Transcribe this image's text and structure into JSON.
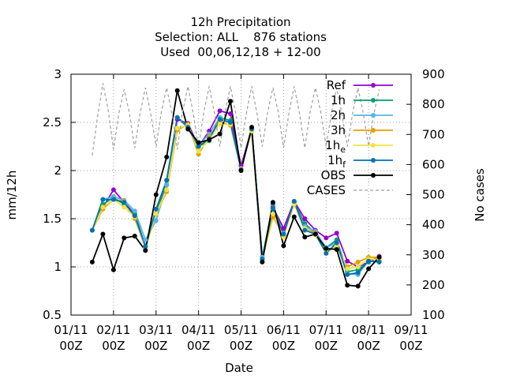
{
  "chart_data": {
    "type": "line",
    "title": [
      "12h Precipitation",
      "Selection: ALL    876 stations",
      "Used  00,06,12,18 + 12-00"
    ],
    "xlabel": "Date",
    "ylabel": "mm/12h",
    "y2label": "No cases",
    "xlim_days": [
      0,
      8
    ],
    "ylim": [
      0.5,
      3
    ],
    "y2lim": [
      100,
      900
    ],
    "x_ticks": [
      {
        "line1": "01/11",
        "line2": "00Z",
        "day": 0
      },
      {
        "line1": "02/11",
        "line2": "00Z",
        "day": 1
      },
      {
        "line1": "03/11",
        "line2": "00Z",
        "day": 2
      },
      {
        "line1": "04/11",
        "line2": "00Z",
        "day": 3
      },
      {
        "line1": "05/11",
        "line2": "00Z",
        "day": 4
      },
      {
        "line1": "06/11",
        "line2": "00Z",
        "day": 5
      },
      {
        "line1": "07/11",
        "line2": "00Z",
        "day": 6
      },
      {
        "line1": "08/11",
        "line2": "00Z",
        "day": 7
      },
      {
        "line1": "09/11",
        "line2": "00Z",
        "day": 8
      }
    ],
    "y_ticks": [
      "0.5",
      "1",
      "1.5",
      "2",
      "2.5",
      "3"
    ],
    "y2_ticks": [
      "100",
      "200",
      "300",
      "400",
      "500",
      "600",
      "700",
      "800",
      "900"
    ],
    "grid": true,
    "legend_position": "top-right",
    "x_days": [
      0.5,
      0.75,
      1.0,
      1.25,
      1.5,
      1.75,
      2.0,
      2.25,
      2.5,
      2.75,
      3.0,
      3.25,
      3.5,
      3.75,
      4.0,
      4.25,
      4.5,
      4.75,
      5.0,
      5.25,
      5.5,
      5.75,
      6.0,
      6.25,
      6.5,
      6.75,
      7.0,
      7.25
    ],
    "series": [
      {
        "name": "Ref",
        "color": "#9400d3",
        "marker": "circle",
        "values": [
          1.38,
          1.62,
          1.8,
          1.67,
          1.55,
          1.21,
          1.55,
          1.85,
          2.53,
          2.49,
          2.25,
          2.41,
          2.62,
          2.59,
          2.05,
          2.43,
          1.1,
          1.62,
          1.4,
          1.68,
          1.5,
          1.38,
          1.3,
          1.35,
          1.06,
          1.0,
          1.05,
          1.11
        ]
      },
      {
        "name": "1h",
        "color": "#009e73",
        "marker": "circle",
        "values": [
          1.38,
          1.65,
          1.72,
          1.65,
          1.55,
          1.21,
          1.55,
          1.9,
          2.55,
          2.47,
          2.25,
          2.31,
          2.55,
          2.52,
          2.01,
          2.43,
          1.1,
          1.65,
          1.32,
          1.67,
          1.45,
          1.35,
          1.2,
          1.28,
          0.95,
          0.97,
          1.05,
          1.07
        ]
      },
      {
        "name": "2h",
        "color": "#56b4e9",
        "marker": "circle",
        "values": [
          1.38,
          1.7,
          1.73,
          1.69,
          1.58,
          1.28,
          1.48,
          1.85,
          2.55,
          2.45,
          2.26,
          2.38,
          2.55,
          2.49,
          2.01,
          2.43,
          1.1,
          1.6,
          1.35,
          1.65,
          1.42,
          1.37,
          1.2,
          1.25,
          0.93,
          0.92,
          1.07,
          1.05
        ]
      },
      {
        "name": "3h",
        "color": "#e69f00",
        "marker": "circle",
        "values": [
          1.38,
          1.6,
          1.7,
          1.68,
          1.5,
          1.2,
          1.55,
          1.78,
          2.42,
          2.48,
          2.17,
          2.35,
          2.51,
          2.47,
          2.02,
          2.41,
          1.08,
          1.52,
          1.33,
          1.67,
          1.4,
          1.35,
          1.18,
          1.2,
          1.0,
          1.05,
          1.1,
          1.1
        ]
      },
      {
        "name": "1h_e",
        "label_main": "1h",
        "label_sub": "e",
        "color": "#f0e442",
        "marker": "circle",
        "values": [
          1.38,
          1.62,
          1.7,
          1.62,
          1.52,
          1.2,
          1.55,
          1.8,
          2.44,
          2.47,
          2.2,
          2.32,
          2.48,
          2.48,
          2.02,
          2.41,
          1.07,
          1.55,
          1.31,
          1.65,
          1.4,
          1.33,
          1.15,
          1.22,
          0.98,
          1.0,
          1.08,
          1.08
        ]
      },
      {
        "name": "1h_f",
        "label_main": "1h",
        "label_sub": "f",
        "color": "#0072b2",
        "marker": "circle",
        "values": [
          1.38,
          1.7,
          1.7,
          1.67,
          1.53,
          1.21,
          1.6,
          1.9,
          2.55,
          2.45,
          2.25,
          2.33,
          2.53,
          2.5,
          2.01,
          2.43,
          1.08,
          1.6,
          1.34,
          1.68,
          1.38,
          1.34,
          1.14,
          1.25,
          0.92,
          0.94,
          1.06,
          1.05
        ]
      },
      {
        "name": "OBS",
        "color": "#000000",
        "marker": "circle",
        "values": [
          1.05,
          1.34,
          0.97,
          1.3,
          1.32,
          1.17,
          1.75,
          2.14,
          2.83,
          2.43,
          2.29,
          2.32,
          2.38,
          2.72,
          2.0,
          2.45,
          1.05,
          1.67,
          1.22,
          1.52,
          1.31,
          1.34,
          1.19,
          1.18,
          0.81,
          0.8,
          0.98,
          1.1
        ]
      },
      {
        "name": "CASES",
        "color": "#a0a0a0",
        "dashed": true,
        "axis": "y2",
        "x": [
          0.5,
          0.625,
          0.75,
          0.875,
          1.0,
          1.125,
          1.25,
          1.375,
          1.5,
          1.625,
          1.75,
          1.875,
          2.0,
          2.125,
          2.25,
          2.375,
          2.5,
          2.625,
          2.75,
          2.875,
          3.0,
          3.125,
          3.25,
          3.375,
          3.5,
          3.625,
          3.75,
          3.875,
          4.0,
          4.125,
          4.25,
          4.375,
          4.5,
          4.625,
          4.75,
          4.875,
          5.0,
          5.125,
          5.25,
          5.375,
          5.5,
          5.625,
          5.75,
          5.875,
          6.0,
          6.125,
          6.25,
          6.375,
          6.5,
          6.625,
          6.75,
          6.875,
          7.0,
          7.125,
          7.25
        ],
        "values": [
          630,
          760,
          870,
          780,
          650,
          770,
          850,
          770,
          655,
          770,
          855,
          770,
          660,
          775,
          855,
          770,
          650,
          775,
          860,
          770,
          655,
          775,
          860,
          770,
          660,
          775,
          860,
          770,
          655,
          770,
          860,
          770,
          660,
          775,
          855,
          775,
          655,
          770,
          860,
          770,
          655,
          775,
          855,
          775,
          660,
          770,
          855,
          765,
          660,
          770,
          855,
          770,
          660,
          770,
          850
        ]
      }
    ]
  }
}
